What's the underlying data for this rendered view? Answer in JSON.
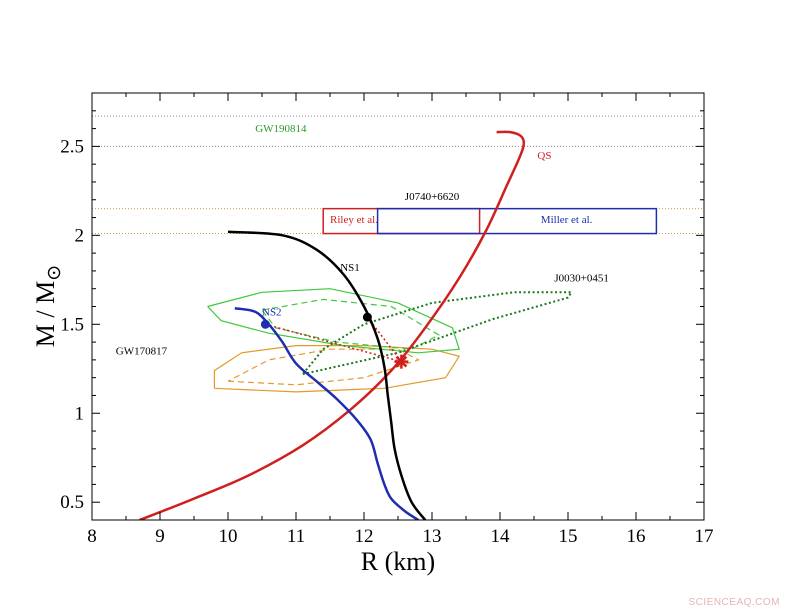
{
  "chart_data": {
    "type": "line",
    "xlabel": "R (km)",
    "ylabel": "M / M",
    "ylabel_symbol": "⊙",
    "xlim": [
      8,
      17
    ],
    "ylim": [
      0.4,
      2.8
    ],
    "xticks": [
      "8",
      "9",
      "10",
      "11",
      "12",
      "13",
      "14",
      "15",
      "16",
      "17"
    ],
    "yticks": [
      "0.5",
      "1",
      "1.5",
      "2",
      "2.5"
    ],
    "grid": false,
    "colors": {
      "QS": "#d01f1f",
      "NS1": "#000000",
      "NS2": "#1f2eb0",
      "GW190814": "#2a9a2a",
      "GW170817_orange": "#e39a2a",
      "GW170817_green": "#3ec83e",
      "J0030": "#1a7a1a",
      "Riley": "#d01f1f",
      "Miller": "#1f2eb0"
    },
    "series": [
      {
        "name": "QS",
        "x": [
          8.7,
          9.5,
          10.3,
          11.1,
          11.8,
          12.4,
          12.9,
          13.4,
          13.8,
          14.1,
          14.3,
          14.35,
          14.3,
          14.15,
          13.95
        ],
        "y": [
          0.4,
          0.52,
          0.65,
          0.82,
          1.02,
          1.24,
          1.48,
          1.76,
          2.03,
          2.28,
          2.45,
          2.52,
          2.56,
          2.58,
          2.58
        ]
      },
      {
        "name": "NS1",
        "x": [
          10.0,
          10.8,
          11.3,
          11.7,
          12.0,
          12.2,
          12.3,
          12.35,
          12.4,
          12.45,
          12.55,
          12.7,
          12.9
        ],
        "y": [
          2.02,
          2.0,
          1.92,
          1.78,
          1.6,
          1.42,
          1.26,
          1.1,
          0.95,
          0.8,
          0.65,
          0.5,
          0.4
        ]
      },
      {
        "name": "NS2",
        "x": [
          10.1,
          10.4,
          10.6,
          10.8,
          11.0,
          11.3,
          11.6,
          11.9,
          12.1,
          12.2,
          12.3,
          12.4,
          12.6,
          12.8
        ],
        "y": [
          1.59,
          1.57,
          1.5,
          1.4,
          1.28,
          1.18,
          1.08,
          0.96,
          0.85,
          0.72,
          0.6,
          0.52,
          0.45,
          0.4
        ]
      }
    ],
    "markers": [
      {
        "name": "NS1-point",
        "x": 12.05,
        "y": 1.54,
        "color": "#000000"
      },
      {
        "name": "NS2-point",
        "x": 10.55,
        "y": 1.5,
        "color": "#1f2eb0"
      },
      {
        "name": "QS-point",
        "x": 12.55,
        "y": 1.29,
        "color": "#d01f1f"
      }
    ],
    "dotted_links": [
      {
        "from": [
          12.05,
          1.54
        ],
        "to": [
          12.55,
          1.29
        ],
        "color": "#d01f1f"
      },
      {
        "from": [
          10.55,
          1.5
        ],
        "to": [
          12.55,
          1.29
        ],
        "color": "#d01f1f"
      }
    ],
    "horizontal_bands": [
      {
        "name": "GW190814",
        "y": [
          2.5,
          2.67
        ],
        "color": "#8a8a8a"
      },
      {
        "name": "J0740+6620",
        "y": [
          2.01,
          2.15
        ],
        "color": "#c9a04a"
      }
    ],
    "boxes": [
      {
        "name": "Riley et al.",
        "x": [
          11.4,
          13.7
        ],
        "y": [
          2.01,
          2.15
        ],
        "color": "#d01f1f"
      },
      {
        "name": "Miller et al.",
        "x": [
          12.2,
          16.3
        ],
        "y": [
          2.01,
          2.15
        ],
        "color": "#1f2eb0"
      }
    ],
    "contours": [
      {
        "name": "GW170817-orange-outer",
        "color": "#e39a2a",
        "dash": false,
        "x": [
          9.8,
          11.0,
          12.3,
          13.2,
          13.4,
          13.0,
          12.0,
          11.0,
          10.2,
          9.8,
          9.8
        ],
        "y": [
          1.14,
          1.12,
          1.14,
          1.2,
          1.32,
          1.36,
          1.38,
          1.38,
          1.34,
          1.24,
          1.14
        ]
      },
      {
        "name": "GW170817-orange-inner",
        "color": "#e39a2a",
        "dash": true,
        "x": [
          10.0,
          11.0,
          12.0,
          12.8,
          12.5,
          11.5,
          10.6,
          10.0
        ],
        "y": [
          1.18,
          1.16,
          1.2,
          1.3,
          1.36,
          1.36,
          1.3,
          1.18
        ]
      },
      {
        "name": "GW170817-green-outer",
        "color": "#3ec83e",
        "dash": false,
        "x": [
          9.7,
          10.5,
          11.5,
          12.5,
          13.3,
          13.4,
          12.8,
          11.7,
          10.6,
          9.9,
          9.7
        ],
        "y": [
          1.6,
          1.68,
          1.7,
          1.62,
          1.48,
          1.36,
          1.34,
          1.38,
          1.45,
          1.52,
          1.6
        ]
      },
      {
        "name": "GW170817-green-inner",
        "color": "#3ec83e",
        "dash": true,
        "x": [
          10.5,
          11.4,
          12.4,
          13.1,
          12.7,
          11.6,
          10.7,
          10.5
        ],
        "y": [
          1.58,
          1.64,
          1.6,
          1.44,
          1.36,
          1.4,
          1.48,
          1.58
        ]
      },
      {
        "name": "J0030+0451",
        "color": "#1a7a1a",
        "dash": true,
        "x": [
          11.1,
          12.5,
          13.9,
          15.0,
          15.05,
          14.2,
          13.0,
          12.0,
          11.4,
          11.1
        ],
        "y": [
          1.22,
          1.34,
          1.53,
          1.65,
          1.68,
          1.68,
          1.62,
          1.5,
          1.36,
          1.22
        ]
      }
    ],
    "labels": [
      {
        "text": "GW190814",
        "x": 10.4,
        "y": 2.58,
        "color": "#2a9a2a"
      },
      {
        "text": "QS",
        "x": 14.55,
        "y": 2.43,
        "color": "#d01f1f"
      },
      {
        "text": "J0740+6620",
        "x": 12.6,
        "y": 2.2,
        "color": "#000000"
      },
      {
        "text": "Riley et al.",
        "x": 11.5,
        "y": 2.07,
        "color": "#d01f1f"
      },
      {
        "text": "Miller et al.",
        "x": 14.6,
        "y": 2.07,
        "color": "#1f2eb0"
      },
      {
        "text": "NS1",
        "x": 11.65,
        "y": 1.8,
        "color": "#000000"
      },
      {
        "text": "J0030+0451",
        "x": 14.8,
        "y": 1.74,
        "color": "#000000"
      },
      {
        "text": "NS2",
        "x": 10.5,
        "y": 1.55,
        "color": "#1f2eb0"
      },
      {
        "text": "GW170817",
        "x": 8.35,
        "y": 1.33,
        "color": "#000000"
      }
    ]
  },
  "watermark": "SCIENCEAQ.COM"
}
